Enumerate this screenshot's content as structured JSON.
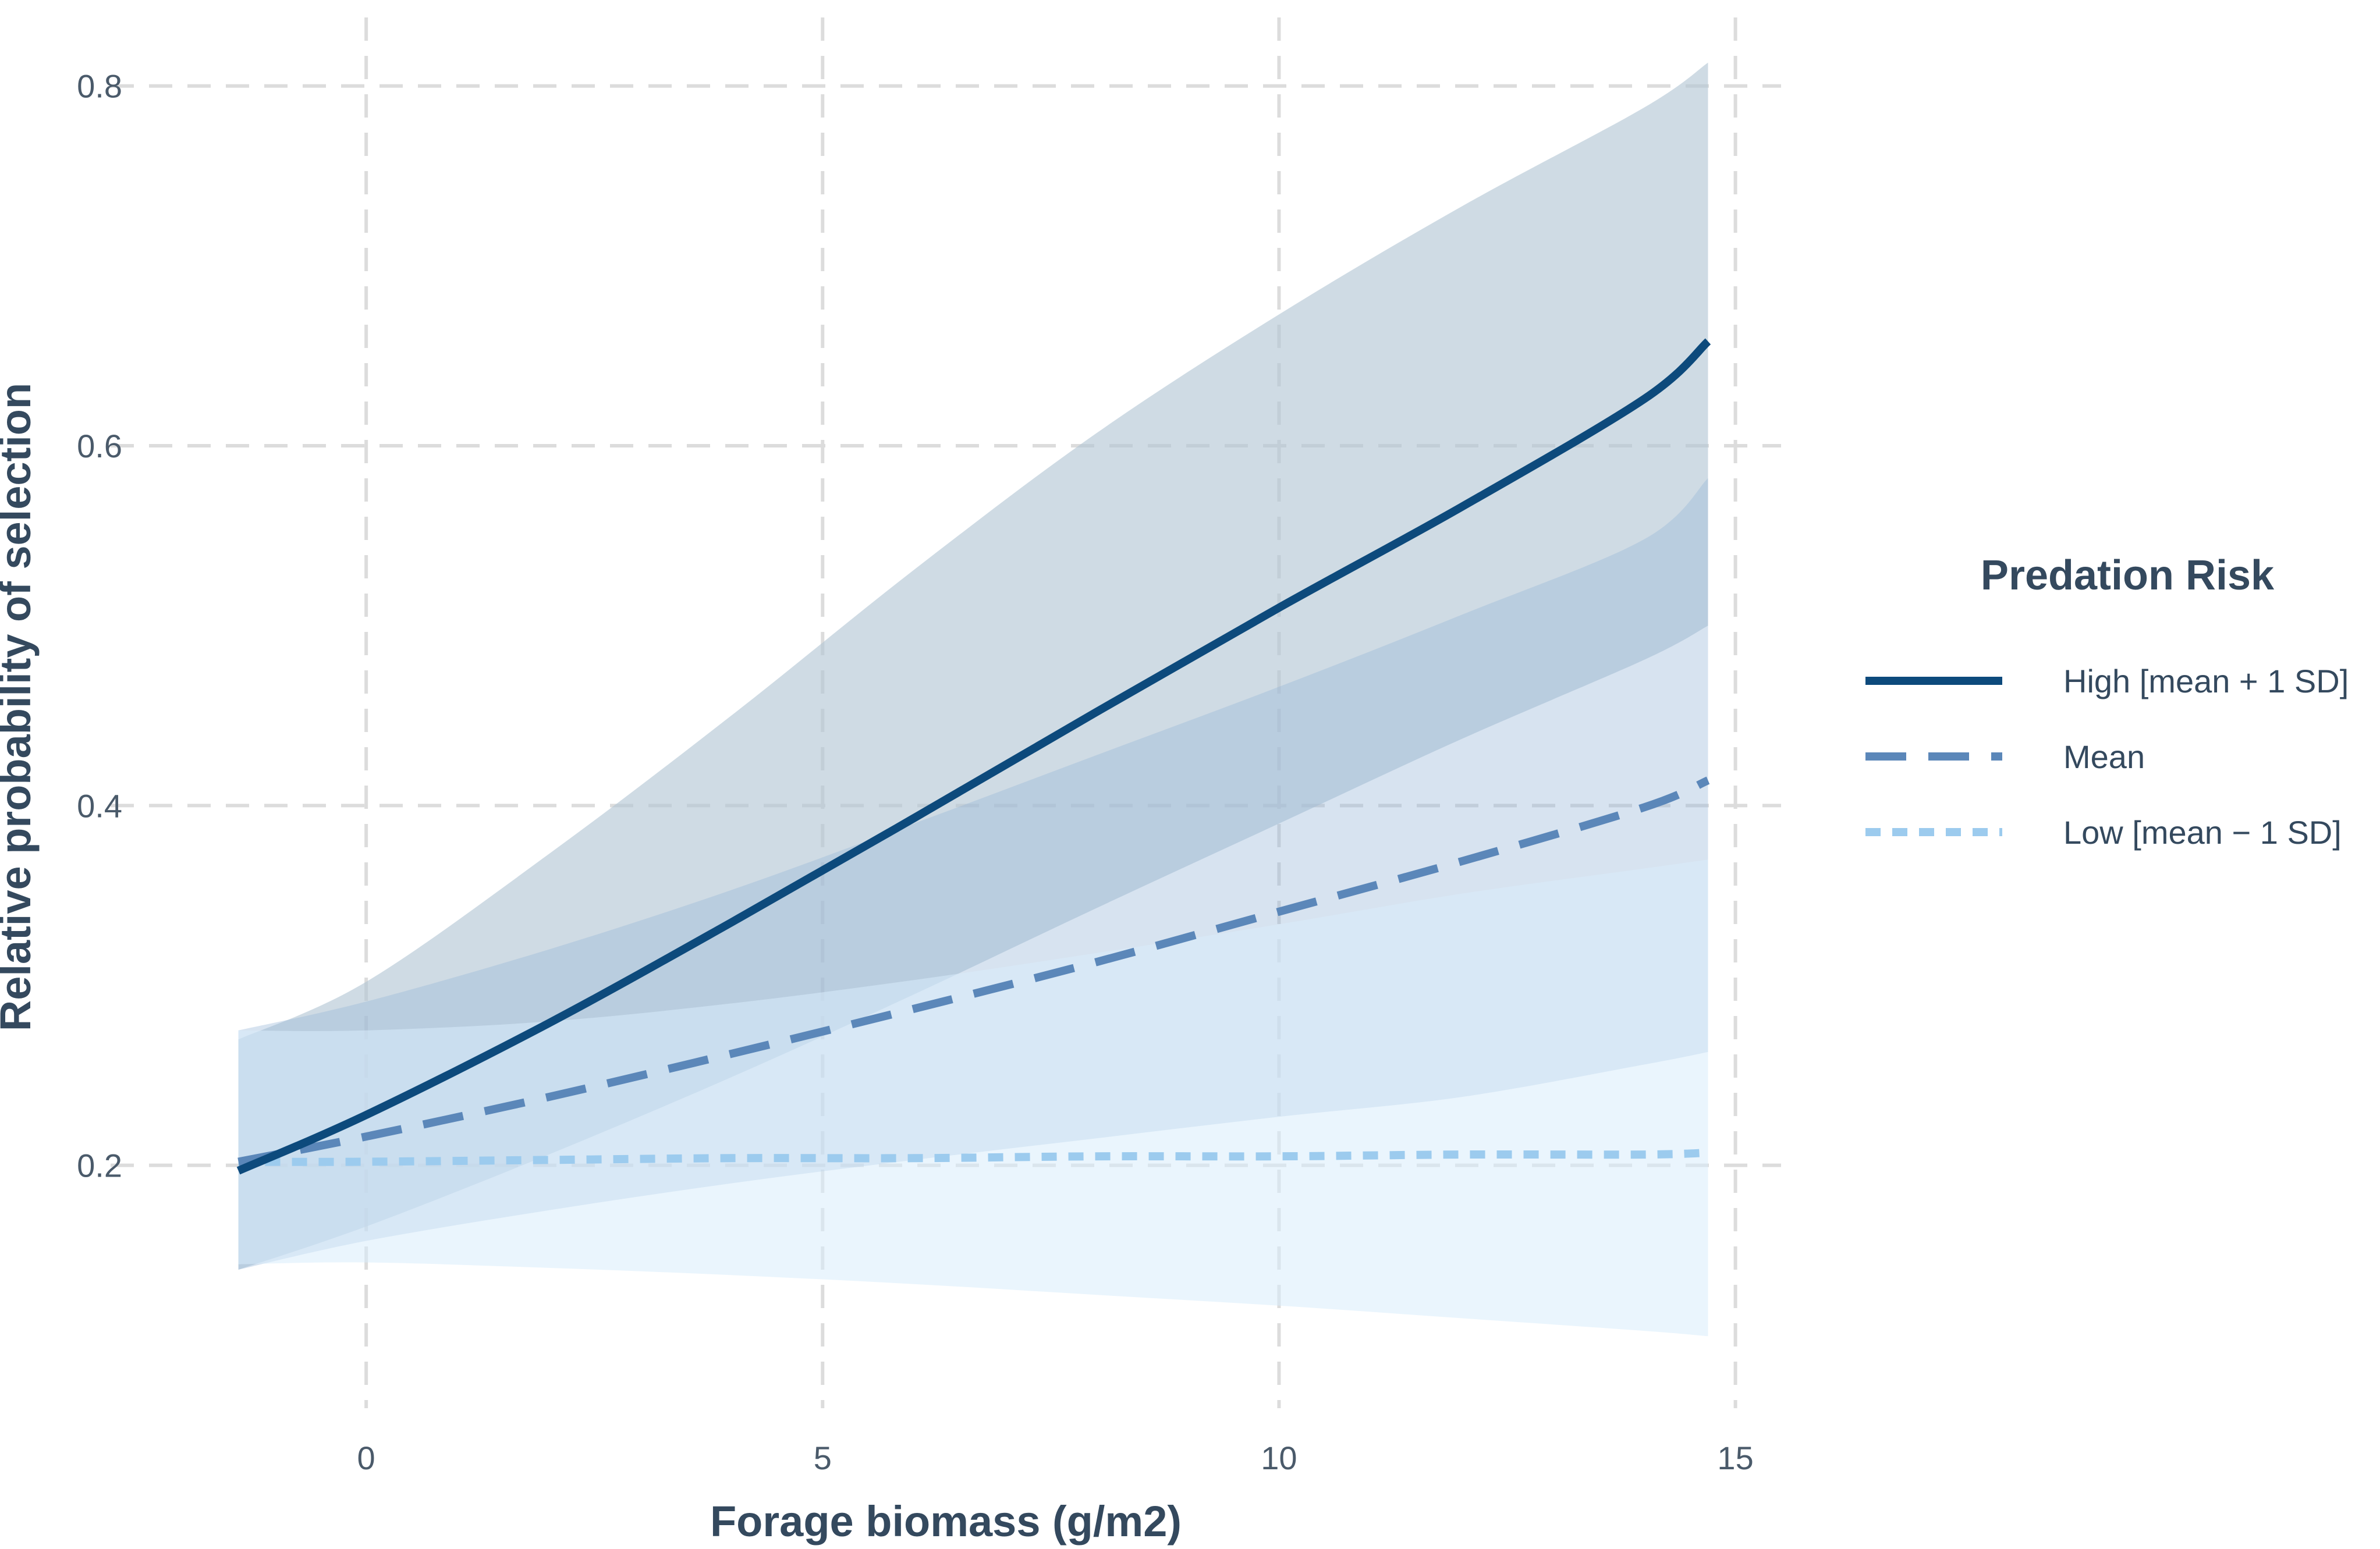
{
  "chart_data": {
    "type": "line",
    "title": "",
    "xlabel": "Forage biomass (g/m2)",
    "ylabel": "Relative probability of selection",
    "xlim": [
      -2.8,
      15.5
    ],
    "ylim": [
      0.065,
      0.83
    ],
    "x_ticks": [
      0,
      5,
      10,
      15
    ],
    "y_ticks": [
      0.2,
      0.4,
      0.6,
      0.8
    ],
    "x_tick_labels": [
      "0",
      "5",
      "10",
      "15"
    ],
    "y_tick_labels": [
      "0.2",
      "0.4",
      "0.6",
      "0.8"
    ],
    "grid": true,
    "grid_style": "dashed",
    "x": [
      -1.4,
      0,
      2,
      4,
      6,
      8,
      10,
      12,
      14,
      14.7
    ],
    "legend": {
      "title": "Predation Risk",
      "position": "right"
    },
    "series": [
      {
        "name": "High [mean + 1 SD]",
        "line_style": "solid",
        "color": "#0d4a7c",
        "band_color": "#b1c5d4",
        "band_opacity": 0.62,
        "values": [
          0.197,
          0.228,
          0.279,
          0.335,
          0.393,
          0.452,
          0.51,
          0.566,
          0.626,
          0.658
        ],
        "lower": [
          0.142,
          0.166,
          0.206,
          0.249,
          0.295,
          0.343,
          0.39,
          0.437,
          0.481,
          0.5
        ],
        "upper": [
          0.27,
          0.302,
          0.373,
          0.45,
          0.531,
          0.607,
          0.673,
          0.733,
          0.788,
          0.813
        ]
      },
      {
        "name": "Mean",
        "line_style": "dashed",
        "color": "#5b87b9",
        "band_color": "#97b6d8",
        "band_opacity": 0.38,
        "values": [
          0.202,
          0.216,
          0.238,
          0.262,
          0.287,
          0.313,
          0.341,
          0.369,
          0.399,
          0.414
        ],
        "lower": [
          0.142,
          0.158,
          0.175,
          0.19,
          0.203,
          0.215,
          0.227,
          0.238,
          0.256,
          0.263
        ],
        "upper": [
          0.275,
          0.291,
          0.32,
          0.353,
          0.39,
          0.428,
          0.466,
          0.506,
          0.548,
          0.582
        ]
      },
      {
        "name": "Low [mean − 1 SD]",
        "line_style": "dotted",
        "color": "#9ccbee",
        "band_color": "#d9ecfb",
        "band_opacity": 0.55,
        "values": [
          0.202,
          0.202,
          0.203,
          0.204,
          0.204,
          0.205,
          0.205,
          0.206,
          0.206,
          0.207
        ],
        "lower": [
          0.145,
          0.146,
          0.143,
          0.139,
          0.134,
          0.128,
          0.122,
          0.115,
          0.108,
          0.105
        ],
        "upper": [
          0.275,
          0.275,
          0.28,
          0.29,
          0.303,
          0.318,
          0.334,
          0.351,
          0.365,
          0.37
        ]
      }
    ]
  }
}
